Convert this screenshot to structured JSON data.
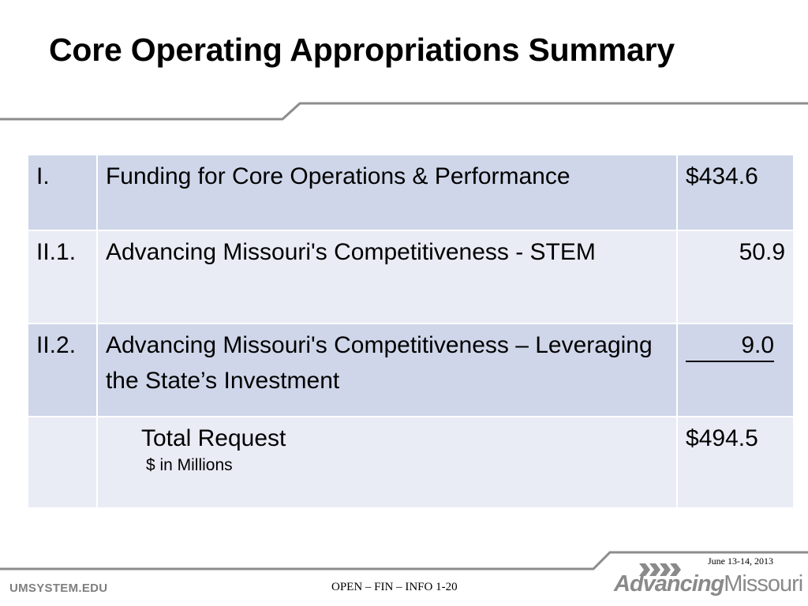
{
  "slide": {
    "title": "Core Operating Appropriations Summary"
  },
  "table": {
    "rows": [
      {
        "num": "I.",
        "desc": "Funding for Core Operations & Performance",
        "amount": "$434.6"
      },
      {
        "num": "II.1.",
        "desc": "Advancing Missouri's Competitiveness - STEM",
        "amount": "50.9"
      },
      {
        "num": "II.2.",
        "desc": "Advancing Missouri's Competitiveness – Leveraging the State’s Investment",
        "amount": "9.0"
      }
    ],
    "total": {
      "label": "Total Request",
      "note": "$ in Millions",
      "amount": "$494.5"
    }
  },
  "footer": {
    "site": "UMSYSTEM.EDU",
    "center": "OPEN – FIN – INFO 1-20",
    "date": "June 13-14, 2013",
    "logo_bold": "Advancing",
    "logo_light": "Missouri"
  },
  "colors": {
    "row_dark": "#cfd6e9",
    "row_light": "#e9ecf5",
    "rule": "#8c8c8c"
  }
}
